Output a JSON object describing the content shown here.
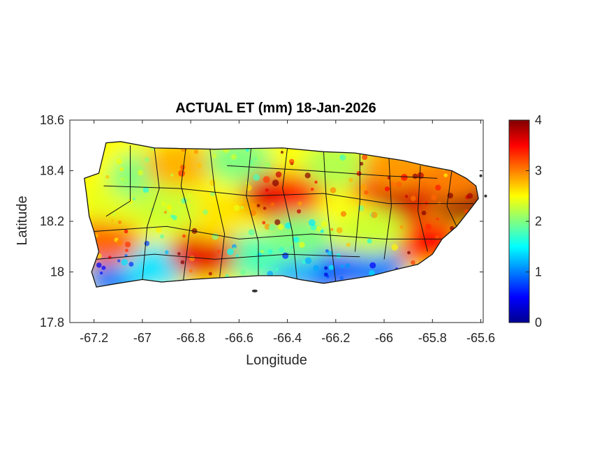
{
  "chart_data": {
    "type": "heatmap",
    "title": "ACTUAL ET (mm) 18-Jan-2026",
    "xlabel": "Longitude",
    "ylabel": "Latitude",
    "xlim": [
      -67.3,
      -65.59
    ],
    "ylim": [
      17.8,
      18.6
    ],
    "x_ticks": [
      -67.2,
      -67,
      -66.8,
      -66.6,
      -66.4,
      -66.2,
      -66,
      -65.8,
      -65.6
    ],
    "x_tick_labels": [
      "-67.2",
      "-67",
      "-66.8",
      "-66.6",
      "-66.4",
      "-66.2",
      "-66",
      "-65.8",
      "-65.6"
    ],
    "y_ticks": [
      17.8,
      18,
      18.2,
      18.4,
      18.6
    ],
    "y_tick_labels": [
      "17.8",
      "18",
      "18.2",
      "18.4",
      "18.6"
    ],
    "colorbar": {
      "colormap": "jet",
      "clim": [
        0,
        4
      ],
      "ticks": [
        0,
        1,
        2,
        3,
        4
      ],
      "tick_labels": [
        "0",
        "1",
        "2",
        "3",
        "4"
      ]
    },
    "island_outline": [
      [
        -67.24,
        18.37
      ],
      [
        -67.18,
        18.39
      ],
      [
        -67.16,
        18.47
      ],
      [
        -67.15,
        18.51
      ],
      [
        -67.09,
        18.515
      ],
      [
        -66.95,
        18.49
      ],
      [
        -66.85,
        18.488
      ],
      [
        -66.7,
        18.485
      ],
      [
        -66.55,
        18.488
      ],
      [
        -66.42,
        18.49
      ],
      [
        -66.25,
        18.475
      ],
      [
        -66.12,
        18.47
      ],
      [
        -66.02,
        18.455
      ],
      [
        -65.92,
        18.44
      ],
      [
        -65.83,
        18.42
      ],
      [
        -65.72,
        18.4
      ],
      [
        -65.66,
        18.37
      ],
      [
        -65.62,
        18.34
      ],
      [
        -65.61,
        18.29
      ],
      [
        -65.65,
        18.24
      ],
      [
        -65.7,
        18.18
      ],
      [
        -65.76,
        18.13
      ],
      [
        -65.8,
        18.07
      ],
      [
        -65.86,
        18.03
      ],
      [
        -65.95,
        18.01
      ],
      [
        -66.05,
        17.985
      ],
      [
        -66.15,
        17.97
      ],
      [
        -66.25,
        17.955
      ],
      [
        -66.35,
        17.97
      ],
      [
        -66.42,
        17.985
      ],
      [
        -66.52,
        17.985
      ],
      [
        -66.62,
        17.98
      ],
      [
        -66.72,
        17.975
      ],
      [
        -66.8,
        17.97
      ],
      [
        -66.92,
        17.96
      ],
      [
        -67.0,
        17.97
      ],
      [
        -67.1,
        17.955
      ],
      [
        -67.19,
        17.94
      ],
      [
        -67.21,
        18.0
      ],
      [
        -67.18,
        18.08
      ],
      [
        -67.2,
        18.16
      ],
      [
        -67.22,
        18.22
      ],
      [
        -67.23,
        18.3
      ]
    ],
    "value_regions": [
      {
        "lon": -66.05,
        "lat": 18.01,
        "value": 1.0
      },
      {
        "lon": -66.25,
        "lat": 18.0,
        "value": 0.9
      },
      {
        "lon": -66.4,
        "lat": 18.02,
        "value": 1.2
      },
      {
        "lon": -67.1,
        "lat": 17.98,
        "value": 1.0
      },
      {
        "lon": -66.95,
        "lat": 18.02,
        "value": 1.4
      },
      {
        "lon": -66.55,
        "lat": 18.06,
        "value": 1.8
      },
      {
        "lon": -66.75,
        "lat": 18.07,
        "value": 3.6
      },
      {
        "lon": -67.15,
        "lat": 18.12,
        "value": 3.1
      },
      {
        "lon": -67.1,
        "lat": 18.28,
        "value": 2.4
      },
      {
        "lon": -67.0,
        "lat": 18.38,
        "value": 2.0
      },
      {
        "lon": -66.85,
        "lat": 18.42,
        "value": 2.8
      },
      {
        "lon": -66.6,
        "lat": 18.44,
        "value": 2.0
      },
      {
        "lon": -66.45,
        "lat": 18.3,
        "value": 3.6
      },
      {
        "lon": -66.3,
        "lat": 18.3,
        "value": 3.4
      },
      {
        "lon": -66.15,
        "lat": 18.24,
        "value": 2.5
      },
      {
        "lon": -66.02,
        "lat": 18.36,
        "value": 3.5
      },
      {
        "lon": -65.9,
        "lat": 18.3,
        "value": 3.7
      },
      {
        "lon": -65.75,
        "lat": 18.33,
        "value": 3.6
      },
      {
        "lon": -65.66,
        "lat": 18.28,
        "value": 3.9
      },
      {
        "lon": -65.82,
        "lat": 18.12,
        "value": 3.5
      },
      {
        "lon": -66.05,
        "lat": 18.16,
        "value": 2.3
      },
      {
        "lon": -66.35,
        "lat": 18.14,
        "value": 2.0
      },
      {
        "lon": -66.7,
        "lat": 18.22,
        "value": 2.6
      },
      {
        "lon": -66.9,
        "lat": 18.25,
        "value": 2.3
      },
      {
        "lon": -66.2,
        "lat": 18.42,
        "value": 2.2
      },
      {
        "lon": -65.95,
        "lat": 18.42,
        "value": 2.9
      },
      {
        "lon": -65.72,
        "lat": 18.38,
        "value": 3.0
      }
    ]
  }
}
